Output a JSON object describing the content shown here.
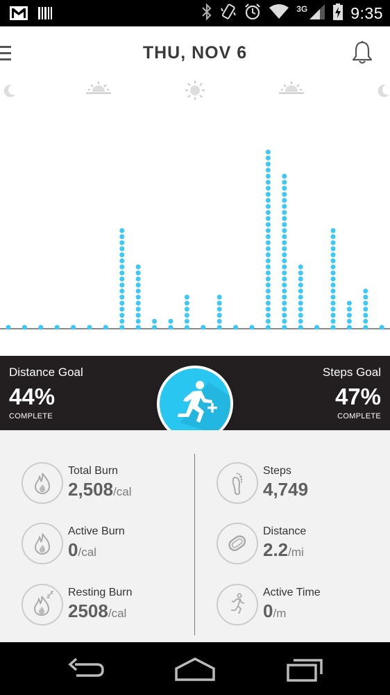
{
  "status_bar": {
    "time": "9:35",
    "network": "3G",
    "icons": [
      "gmail-icon",
      "barcode-icon",
      "bluetooth-icon",
      "vibrate-icon",
      "alarm-icon",
      "wifi-icon",
      "signal-icon",
      "battery-charging-icon"
    ]
  },
  "header": {
    "title": "THU, NOV 6",
    "icons": [
      "menu-icon",
      "bell-icon"
    ]
  },
  "activity_chart": {
    "time_markers": [
      "moon-icon",
      "sunrise-icon",
      "sun-icon",
      "sunset-icon",
      "moon-icon"
    ],
    "dot_color": "#3cc9f5",
    "bar_values": [
      0,
      0,
      0,
      0,
      0,
      0,
      0,
      16,
      10,
      1,
      1,
      5,
      0,
      5,
      0,
      0,
      29,
      25,
      10,
      0,
      16,
      4,
      6,
      0
    ]
  },
  "goals": {
    "distance": {
      "label": "Distance Goal",
      "percent": "44%",
      "status": "COMPLETE"
    },
    "steps": {
      "label": "Steps Goal",
      "percent": "47%",
      "status": "COMPLETE"
    },
    "add_activity_icon": "runner-plus-icon",
    "accent_color": "#29c6f2"
  },
  "stats": {
    "total_burn": {
      "label": "Total Burn",
      "value": "2,508",
      "unit": "/cal",
      "icon": "flame-icon"
    },
    "active_burn": {
      "label": "Active Burn",
      "value": "0",
      "unit": "/cal",
      "icon": "flame-icon"
    },
    "resting_burn": {
      "label": "Resting Burn",
      "value": "2508",
      "unit": "/cal",
      "icon": "sleeping-flame-icon"
    },
    "steps": {
      "label": "Steps",
      "value": "4,749",
      "unit": "",
      "icon": "footprint-icon"
    },
    "distance": {
      "label": "Distance",
      "value": "2.2",
      "unit": "/mi",
      "icon": "route-icon"
    },
    "active_time": {
      "label": "Active Time",
      "value": "0",
      "unit": "/m",
      "icon": "runner-icon"
    }
  },
  "nav_bar": {
    "icons": [
      "back-icon",
      "home-icon",
      "recents-icon"
    ]
  }
}
